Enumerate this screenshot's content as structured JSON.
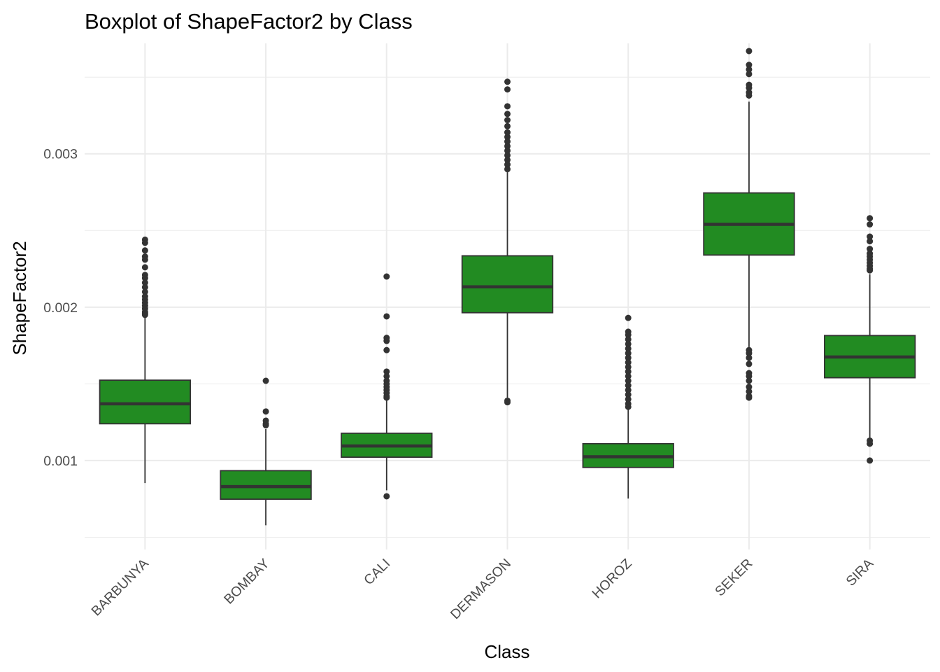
{
  "chart_data": {
    "type": "boxplot",
    "title": "Boxplot of ShapeFactor2 by Class",
    "xlabel": "Class",
    "ylabel": "ShapeFactor2",
    "ylim": [
      0.00042,
      0.00372
    ],
    "y_ticks": [
      0.001,
      0.002,
      0.003
    ],
    "y_tick_labels": [
      "0.001",
      "0.002",
      "0.003"
    ],
    "y_minor_ticks": [
      0.0005,
      0.0015,
      0.0025,
      0.0035
    ],
    "grid": true,
    "legend": "none",
    "categories": [
      "BARBUNYA",
      "BOMBAY",
      "CALI",
      "DERMASON",
      "HOROZ",
      "SEKER",
      "SIRA"
    ],
    "box_fill": "#228b22",
    "box_stroke": "#333333",
    "boxes": [
      {
        "category": "BARBUNYA",
        "q1": 0.00124,
        "median": 0.00137,
        "q3": 0.001524,
        "whisker_low": 0.000853,
        "whisker_high": 0.001938,
        "outliers": [
          0.00244,
          0.00242,
          0.00237,
          0.00233,
          0.00231,
          0.00226,
          0.00221,
          0.00219,
          0.00216,
          0.00213,
          0.0021,
          0.00207,
          0.00205,
          0.00203,
          0.00201,
          0.00199,
          0.00197,
          0.00196,
          0.00195
        ]
      },
      {
        "category": "BOMBAY",
        "q1": 0.000748,
        "median": 0.00083,
        "q3": 0.000934,
        "whisker_low": 0.000578,
        "whisker_high": 0.001205,
        "outliers": [
          0.00152,
          0.00132,
          0.00126,
          0.00124,
          0.00123
        ]
      },
      {
        "category": "CALI",
        "q1": 0.001022,
        "median": 0.001095,
        "q3": 0.001178,
        "whisker_low": 0.000806,
        "whisker_high": 0.00141,
        "outliers": [
          0.0022,
          0.00194,
          0.0018,
          0.00178,
          0.00172,
          0.00158,
          0.00155,
          0.00152,
          0.0015,
          0.00148,
          0.00146,
          0.00144,
          0.00142,
          0.00141,
          0.000767
        ]
      },
      {
        "category": "DERMASON",
        "q1": 0.001964,
        "median": 0.002133,
        "q3": 0.002335,
        "whisker_low": 0.00141,
        "whisker_high": 0.00288,
        "outliers": [
          0.00347,
          0.00342,
          0.00331,
          0.00326,
          0.00322,
          0.00318,
          0.00314,
          0.00311,
          0.00308,
          0.00305,
          0.00302,
          0.00299,
          0.00296,
          0.00293,
          0.0029,
          0.00139,
          0.00138
        ]
      },
      {
        "category": "HOROZ",
        "q1": 0.000955,
        "median": 0.001025,
        "q3": 0.00111,
        "whisker_low": 0.000752,
        "whisker_high": 0.001345,
        "outliers": [
          0.00193,
          0.00184,
          0.00182,
          0.00179,
          0.00176,
          0.00173,
          0.0017,
          0.00167,
          0.00164,
          0.00161,
          0.00158,
          0.00155,
          0.00152,
          0.00149,
          0.00146,
          0.00143,
          0.0014,
          0.00137,
          0.00135
        ]
      },
      {
        "category": "SEKER",
        "q1": 0.00234,
        "median": 0.00254,
        "q3": 0.002745,
        "whisker_low": 0.00174,
        "whisker_high": 0.00334,
        "outliers": [
          0.00367,
          0.00358,
          0.00355,
          0.00352,
          0.00345,
          0.00343,
          0.0034,
          0.00338,
          0.00172,
          0.0017,
          0.00167,
          0.00163,
          0.00157,
          0.00155,
          0.00152,
          0.00148,
          0.00145,
          0.00142,
          0.00141
        ]
      },
      {
        "category": "SIRA",
        "q1": 0.00154,
        "median": 0.001675,
        "q3": 0.001815,
        "whisker_low": 0.00114,
        "whisker_high": 0.002215,
        "outliers": [
          0.00258,
          0.00254,
          0.00246,
          0.00243,
          0.00238,
          0.00235,
          0.00233,
          0.00231,
          0.00229,
          0.00227,
          0.00225,
          0.00224,
          0.00113,
          0.00111,
          0.001
        ]
      }
    ]
  }
}
